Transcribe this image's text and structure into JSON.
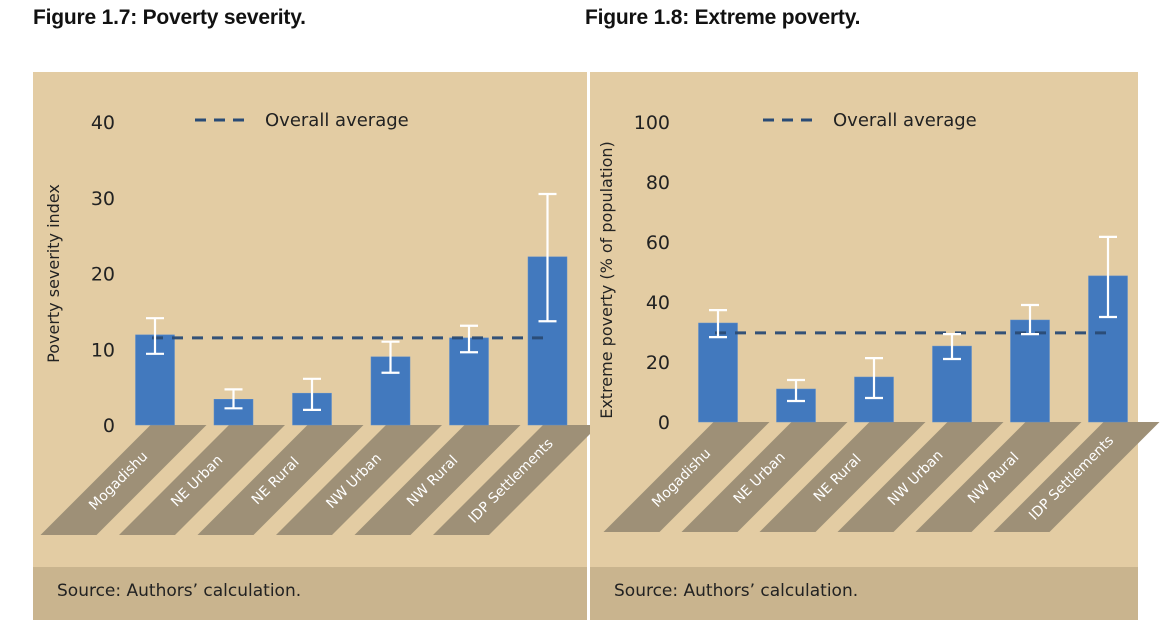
{
  "colors": {
    "panel_bg": "#e3cca3",
    "source_bg": "#c9b48e",
    "bar": "#4279be",
    "error_bar": "#ffffff",
    "average_line": "#2a4b75",
    "label_band": "#9e9077"
  },
  "chart_data": [
    {
      "type": "bar",
      "title": "Figure 1.7: Poverty severity.",
      "xlabel": "",
      "ylabel": "Poverty severity index",
      "ylim": [
        0,
        40
      ],
      "yticks": [
        "0",
        "10",
        "20",
        "30",
        "40"
      ],
      "ytick_values": [
        0,
        10,
        20,
        30,
        40
      ],
      "grid": false,
      "categories": [
        "Mogadishu",
        "NE Urban",
        "NE Rural",
        "NW Urban",
        "NW Rural",
        "IDP Settlements"
      ],
      "series": [
        {
          "name": "Poverty severity",
          "values": [
            11.9,
            3.4,
            4.2,
            9.0,
            11.5,
            22.2
          ],
          "error_low": [
            9.4,
            2.2,
            2.0,
            6.9,
            9.6,
            13.7
          ],
          "error_high": [
            14.1,
            4.7,
            6.1,
            11.0,
            13.1,
            30.5
          ]
        }
      ],
      "reference_line": {
        "name": "Overall average",
        "value": 11.5,
        "style": "dashed"
      },
      "legend": {
        "entries": [
          "Overall average"
        ],
        "placement": "top-center"
      },
      "source": "Source: Authors’ calculation."
    },
    {
      "type": "bar",
      "title": "Figure 1.8: Extreme poverty.",
      "xlabel": "",
      "ylabel": "Extreme poverty (% of population)",
      "ylim": [
        0,
        100
      ],
      "yticks": [
        "0",
        "20",
        "40",
        "60",
        "80",
        "100"
      ],
      "ytick_values": [
        0,
        20,
        40,
        60,
        80,
        100
      ],
      "grid": false,
      "categories": [
        "Mogadishu",
        "NE Urban",
        "NE Rural",
        "NW Urban",
        "NW Rural",
        "IDP Settlements"
      ],
      "series": [
        {
          "name": "Extreme poverty",
          "values": [
            33.0,
            11.0,
            15.0,
            25.3,
            34.0,
            48.7
          ],
          "error_low": [
            28.3,
            7.0,
            8.0,
            21.0,
            29.3,
            35.0
          ],
          "error_high": [
            37.3,
            14.0,
            21.3,
            29.3,
            39.0,
            61.7
          ]
        }
      ],
      "reference_line": {
        "name": "Overall average",
        "value": 29.7,
        "style": "dashed"
      },
      "legend": {
        "entries": [
          "Overall average"
        ],
        "placement": "top-center"
      },
      "source": "Source: Authors’ calculation."
    }
  ]
}
